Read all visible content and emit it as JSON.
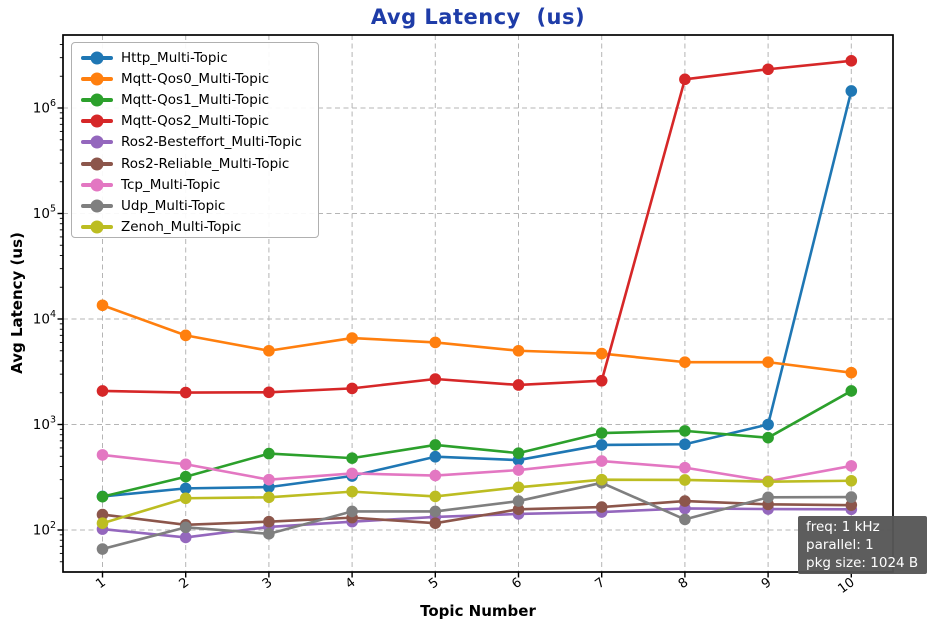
{
  "chart_data": {
    "type": "line",
    "title": "Avg Latency  (us)",
    "title_color": "#1e3ca8",
    "xlabel": "Topic Number",
    "ylabel": "Avg Latency (us)",
    "x": [
      1,
      2,
      3,
      4,
      5,
      6,
      7,
      8,
      9,
      10
    ],
    "y_scale": "log",
    "y_tick_exponents": [
      2,
      3,
      4,
      5,
      6
    ],
    "ylim": [
      40,
      4900000
    ],
    "x_tick_rotation_deg": 36,
    "grid": {
      "style": "dashed",
      "color": "#b5b5b5",
      "which": "major-both"
    },
    "legend_position": "upper-left",
    "series": [
      {
        "name": "Http_Multi-Topic",
        "color": "#1f77b4",
        "values": [
          208,
          248,
          255,
          325,
          495,
          460,
          640,
          650,
          1000,
          1450000
        ]
      },
      {
        "name": "Mqtt-Qos0_Multi-Topic",
        "color": "#ff7f0e",
        "values": [
          13500,
          7000,
          5000,
          6600,
          6000,
          5000,
          4700,
          3900,
          3900,
          3100
        ]
      },
      {
        "name": "Mqtt-Qos1_Multi-Topic",
        "color": "#2ca02c",
        "values": [
          207,
          320,
          530,
          480,
          640,
          535,
          830,
          870,
          750,
          2080
        ]
      },
      {
        "name": "Mqtt-Qos2_Multi-Topic",
        "color": "#d62728",
        "values": [
          2080,
          2010,
          2020,
          2200,
          2700,
          2370,
          2600,
          1870000,
          2330000,
          2800000
        ]
      },
      {
        "name": "Ros2-Besteffort_Multi-Topic",
        "color": "#9467bd",
        "values": [
          102,
          85,
          107,
          120,
          133,
          142,
          148,
          160,
          158,
          157
        ]
      },
      {
        "name": "Ros2-Reliable_Multi-Topic",
        "color": "#8c564b",
        "values": [
          140,
          112,
          120,
          131,
          116,
          157,
          165,
          188,
          175,
          172
        ]
      },
      {
        "name": "Tcp_Multi-Topic",
        "color": "#e377c2",
        "values": [
          515,
          420,
          300,
          344,
          328,
          370,
          450,
          390,
          290,
          405
        ]
      },
      {
        "name": "Udp_Multi-Topic",
        "color": "#7f7f7f",
        "values": [
          66,
          106,
          92,
          150,
          150,
          188,
          280,
          126,
          204,
          205
        ]
      },
      {
        "name": "Zenoh_Multi-Topic",
        "color": "#bcbd22",
        "values": [
          116,
          200,
          204,
          231,
          208,
          254,
          300,
          298,
          287,
          293
        ]
      }
    ],
    "annotation": {
      "lines": [
        "freq: 1 kHz",
        "parallel: 1",
        "pkg size: 1024 B"
      ],
      "bg": "rgba(86,86,86,0.96)",
      "fg": "#ffffff"
    }
  }
}
